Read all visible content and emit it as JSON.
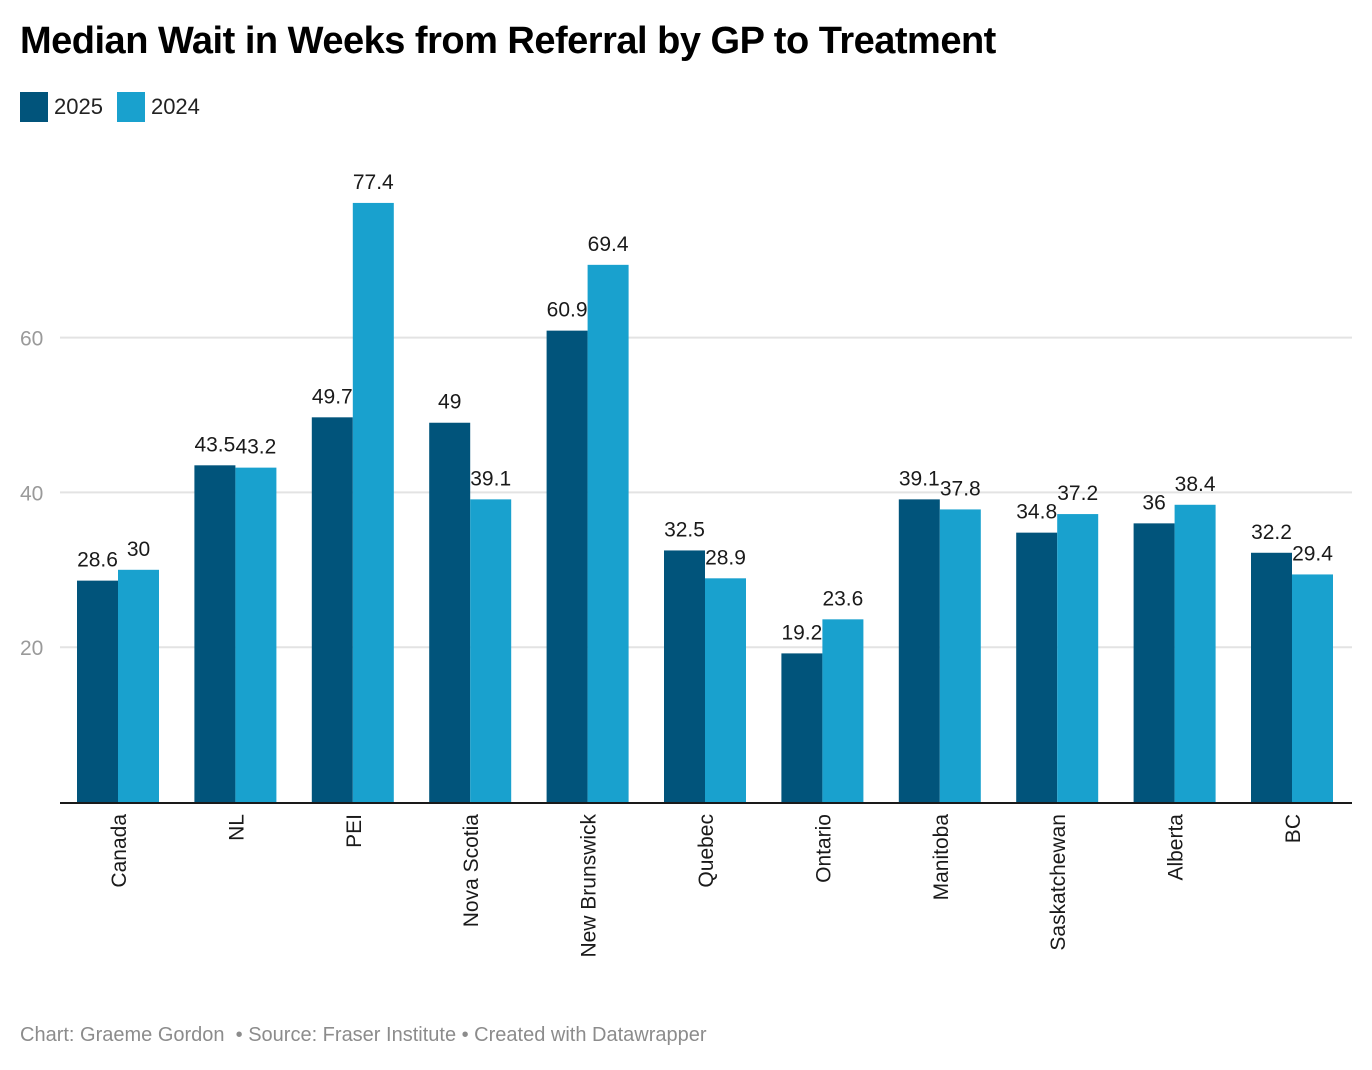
{
  "chart_data": {
    "type": "bar",
    "title": "Median Wait in Weeks from Referral by GP to Treatment",
    "xlabel": "",
    "ylabel": "",
    "ylim": [
      0,
      80
    ],
    "yticks": [
      20,
      40,
      60
    ],
    "grid": true,
    "legend_position": "top-left",
    "categories": [
      "Canada",
      "NL",
      "PEI",
      "Nova Scotia",
      "New Brunswick",
      "Quebec",
      "Ontario",
      "Manitoba",
      "Saskatchewan",
      "Alberta",
      "BC"
    ],
    "series": [
      {
        "name": "2025",
        "color": "#01547b",
        "values": [
          28.6,
          43.5,
          49.7,
          49,
          60.9,
          32.5,
          19.2,
          39.1,
          34.8,
          36,
          32.2
        ],
        "labels": [
          "28.6",
          "43.5",
          "49.7",
          "49",
          "60.9",
          "32.5",
          "19.2",
          "39.1",
          "34.8",
          "36",
          "32.2"
        ]
      },
      {
        "name": "2024",
        "color": "#19a1ce",
        "values": [
          30,
          43.2,
          77.4,
          39.1,
          69.4,
          28.9,
          23.6,
          37.8,
          37.2,
          38.4,
          29.4
        ],
        "labels": [
          "30",
          "43.2",
          "77.4",
          "39.1",
          "69.4",
          "28.9",
          "23.6",
          "37.8",
          "37.2",
          "38.4",
          "29.4"
        ]
      }
    ]
  },
  "legend": [
    {
      "label": "2025",
      "color": "#01547b"
    },
    {
      "label": "2024",
      "color": "#19a1ce"
    }
  ],
  "footer": "Chart: Graeme Gordon  • Source: Fraser Institute • Created with Datawrapper"
}
